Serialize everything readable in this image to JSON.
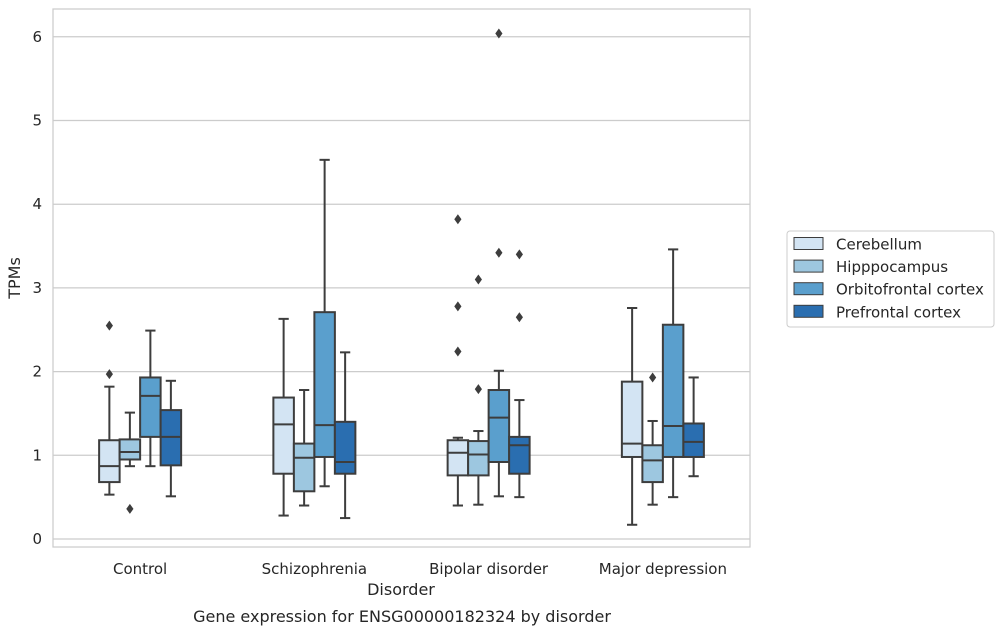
{
  "chart_data": {
    "type": "boxplot",
    "title": "",
    "caption": "Gene expression for ENSG00000182324 by disorder",
    "xlabel": "Disorder",
    "ylabel": "TPMs",
    "ylim": [
      -0.1,
      6.35
    ],
    "yticks": [
      0,
      1,
      2,
      3,
      4,
      5,
      6
    ],
    "grid": "horizontal",
    "legend_position": "right",
    "categories": [
      "Control",
      "Schizophrenia",
      "Bipolar disorder",
      "Major depression"
    ],
    "series": [
      {
        "name": "Cerebellum",
        "color": "#d3e4f3",
        "boxes": [
          {
            "whisker_low": 0.53,
            "q1": 0.68,
            "median": 0.87,
            "q3": 1.18,
            "whisker_high": 1.82,
            "outliers": [
              2.55,
              1.97
            ]
          },
          {
            "whisker_low": 0.28,
            "q1": 0.78,
            "median": 1.37,
            "q3": 1.69,
            "whisker_high": 2.63,
            "outliers": []
          },
          {
            "whisker_low": 0.4,
            "q1": 0.76,
            "median": 1.03,
            "q3": 1.18,
            "whisker_high": 1.21,
            "outliers": [
              3.82,
              2.78,
              2.24
            ]
          },
          {
            "whisker_low": 0.17,
            "q1": 0.98,
            "median": 1.14,
            "q3": 1.88,
            "whisker_high": 2.76,
            "outliers": []
          }
        ]
      },
      {
        "name": "Hipppocampus",
        "color": "#9dc7e0",
        "boxes": [
          {
            "whisker_low": 0.87,
            "q1": 0.95,
            "median": 1.04,
            "q3": 1.19,
            "whisker_high": 1.51,
            "outliers": [
              0.36
            ]
          },
          {
            "whisker_low": 0.4,
            "q1": 0.57,
            "median": 0.97,
            "q3": 1.14,
            "whisker_high": 1.78,
            "outliers": []
          },
          {
            "whisker_low": 0.41,
            "q1": 0.76,
            "median": 1.01,
            "q3": 1.17,
            "whisker_high": 1.29,
            "outliers": [
              3.1,
              1.79
            ]
          },
          {
            "whisker_low": 0.41,
            "q1": 0.68,
            "median": 0.94,
            "q3": 1.12,
            "whisker_high": 1.41,
            "outliers": [
              1.93
            ]
          }
        ]
      },
      {
        "name": "Orbitofrontal cortex",
        "color": "#5a9fcd",
        "boxes": [
          {
            "whisker_low": 0.87,
            "q1": 1.22,
            "median": 1.71,
            "q3": 1.93,
            "whisker_high": 2.49,
            "outliers": []
          },
          {
            "whisker_low": 0.63,
            "q1": 0.98,
            "median": 1.36,
            "q3": 2.71,
            "whisker_high": 4.53,
            "outliers": []
          },
          {
            "whisker_low": 0.51,
            "q1": 0.92,
            "median": 1.45,
            "q3": 1.78,
            "whisker_high": 2.01,
            "outliers": [
              6.04,
              3.42
            ]
          },
          {
            "whisker_low": 0.5,
            "q1": 0.98,
            "median": 1.35,
            "q3": 2.56,
            "whisker_high": 3.46,
            "outliers": []
          }
        ]
      },
      {
        "name": "Prefrontal cortex",
        "color": "#2a6eb0",
        "boxes": [
          {
            "whisker_low": 0.51,
            "q1": 0.88,
            "median": 1.22,
            "q3": 1.54,
            "whisker_high": 1.89,
            "outliers": []
          },
          {
            "whisker_low": 0.25,
            "q1": 0.78,
            "median": 0.92,
            "q3": 1.4,
            "whisker_high": 2.23,
            "outliers": []
          },
          {
            "whisker_low": 0.5,
            "q1": 0.78,
            "median": 1.12,
            "q3": 1.22,
            "whisker_high": 1.66,
            "outliers": [
              3.4,
              2.65
            ]
          },
          {
            "whisker_low": 0.75,
            "q1": 0.98,
            "median": 1.16,
            "q3": 1.38,
            "whisker_high": 1.93,
            "outliers": []
          }
        ]
      }
    ]
  }
}
